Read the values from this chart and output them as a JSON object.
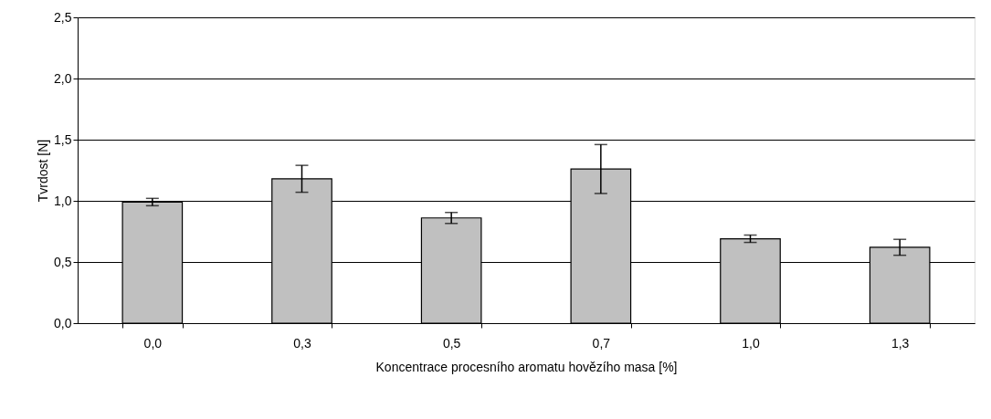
{
  "chart_data": {
    "type": "bar",
    "xlabel": "Koncentrace procesního aromatu hovězího masa [%]",
    "ylabel": "Tvrdost [N]",
    "categories": [
      "0,0",
      "0,3",
      "0,5",
      "0,7",
      "1,0",
      "1,3"
    ],
    "series": [
      {
        "color": "#c0c0c0",
        "values": [
          0.99,
          1.18,
          0.86,
          1.26,
          0.69,
          0.62
        ],
        "errors": [
          0.03,
          0.11,
          0.045,
          0.2,
          0.03,
          0.065
        ]
      }
    ],
    "ylim": [
      0,
      2.5
    ],
    "yticks": [
      {
        "value": 0,
        "label": "0,0"
      },
      {
        "value": 0.5,
        "label": "0,5"
      },
      {
        "value": 1,
        "label": "1,0"
      },
      {
        "value": 1.5,
        "label": "1,5"
      },
      {
        "value": 2,
        "label": "2,0"
      },
      {
        "value": 2.5,
        "label": "2,5"
      }
    ],
    "grid": "y"
  }
}
